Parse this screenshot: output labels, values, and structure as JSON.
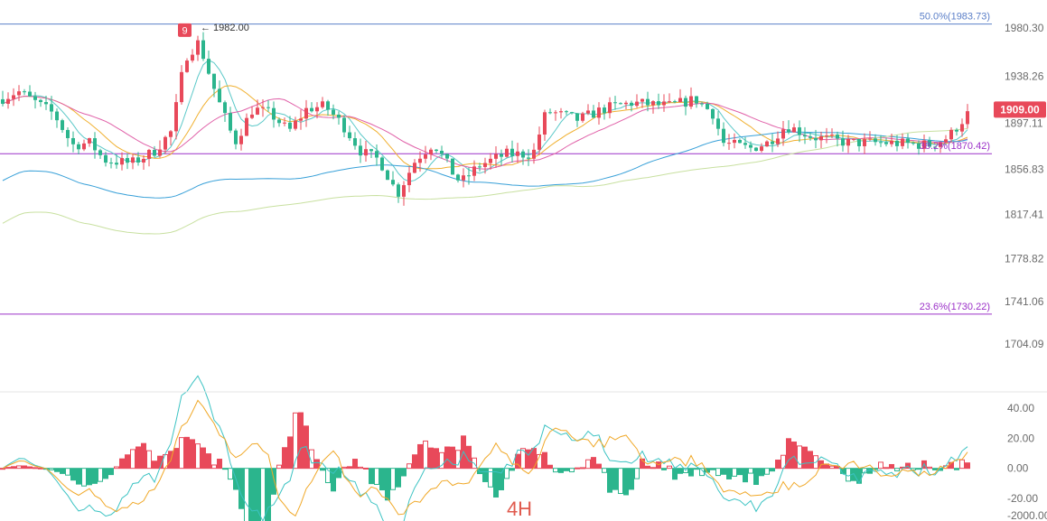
{
  "chart_data": {
    "type": "candlestick",
    "timeframe": "4H",
    "price_axis": {
      "ticks": [
        "1980.30",
        "1938.26",
        "1897.11",
        "1856.83",
        "1817.41",
        "1778.82",
        "1741.06",
        "1704.09"
      ],
      "current_price": "1909.00"
    },
    "indicator_axis": {
      "ticks": [
        "40.00",
        "20.00",
        "0.00",
        "-20.00",
        "-2000.00"
      ]
    },
    "fibonacci_levels": [
      {
        "label": "50.0%(1983.73)",
        "price": 1983.73,
        "color": "#5b7fc8"
      },
      {
        "label": "38.2%(1870.42)",
        "price": 1870.42,
        "color": "#9b30c8"
      },
      {
        "label": "23.6%(1730.22)",
        "price": 1730.22,
        "color": "#9b30c8"
      }
    ],
    "high_marker": {
      "label": "1982.00",
      "badge": "9"
    },
    "colors": {
      "up": "#e8495a",
      "down": "#2bb58d",
      "macd": "#3cc3c3",
      "signal": "#f0a828"
    }
  }
}
